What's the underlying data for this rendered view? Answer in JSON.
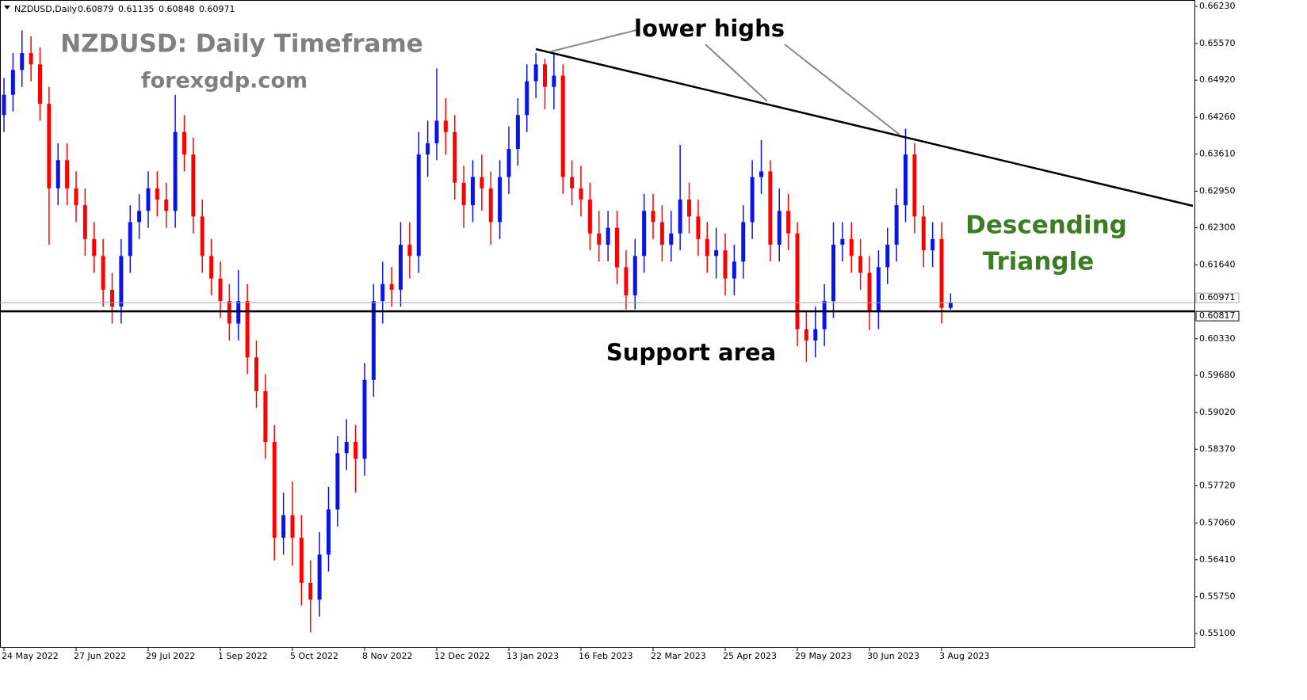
{
  "header": {
    "symbol": "NZDUSD,Daily",
    "ohlc": [
      "0.60879",
      "0.61135",
      "0.60848",
      "0.60971"
    ]
  },
  "chart_data": {
    "type": "candlestick",
    "title": "NZDUSD: Daily Timeframe",
    "subtitle": "forexgdp.com",
    "annotations": {
      "lower_highs": "lower highs",
      "pattern": [
        "Descending",
        "Triangle"
      ],
      "support": "Support area"
    },
    "up_color": "#0a14e6",
    "down_color": "#ff0000",
    "ylim": [
      0.66342,
      0.54847
    ],
    "yticks": [
      {
        "value": 0.6623,
        "label": "0.66230"
      },
      {
        "value": 0.6557,
        "label": "0.65570"
      },
      {
        "value": 0.6492,
        "label": "0.64920"
      },
      {
        "value": 0.6426,
        "label": "0.64260"
      },
      {
        "value": 0.6361,
        "label": "0.63610"
      },
      {
        "value": 0.6295,
        "label": "0.62950"
      },
      {
        "value": 0.623,
        "label": "0.62300"
      },
      {
        "value": 0.6164,
        "label": "0.61640"
      },
      {
        "value": 0.6033,
        "label": "0.60330"
      },
      {
        "value": 0.5968,
        "label": "0.59680"
      },
      {
        "value": 0.5902,
        "label": "0.59020"
      },
      {
        "value": 0.5837,
        "label": "0.58370"
      },
      {
        "value": 0.5772,
        "label": "0.57720"
      },
      {
        "value": 0.5706,
        "label": "0.57060"
      },
      {
        "value": 0.5641,
        "label": "0.56410"
      },
      {
        "value": 0.5575,
        "label": "0.55750"
      },
      {
        "value": 0.551,
        "label": "0.55100"
      }
    ],
    "price_lines": [
      {
        "value": 0.60971,
        "label": "0.60971",
        "color": "#a0a8b0"
      },
      {
        "value": 0.60817,
        "label": "0.60817",
        "color": "#000000"
      }
    ],
    "categories": [
      "24 May 2022",
      null,
      null,
      null,
      null,
      null,
      null,
      null,
      "27 Jun 2022",
      null,
      null,
      null,
      null,
      null,
      null,
      null,
      "29 Jul 2022",
      null,
      null,
      null,
      null,
      null,
      null,
      null,
      "1 Sep 2022",
      null,
      null,
      null,
      null,
      null,
      null,
      null,
      "5 Oct 2022",
      null,
      null,
      null,
      null,
      null,
      null,
      null,
      "8 Nov 2022",
      null,
      null,
      null,
      null,
      null,
      null,
      null,
      "12 Dec 2022",
      null,
      null,
      null,
      null,
      null,
      null,
      null,
      "13 Jan 2023",
      null,
      null,
      null,
      null,
      null,
      null,
      null,
      "16 Feb 2023",
      null,
      null,
      null,
      null,
      null,
      null,
      null,
      "22 Mar 2023",
      null,
      null,
      null,
      null,
      null,
      null,
      null,
      "25 Apr 2023",
      null,
      null,
      null,
      null,
      null,
      null,
      null,
      "29 May 2023",
      null,
      null,
      null,
      null,
      null,
      null,
      null,
      "30 Jun 2023",
      null,
      null,
      null,
      null,
      null,
      null,
      null,
      "3 Aug 2023",
      null
    ],
    "open": [
      0.643,
      0.6466,
      0.651,
      0.654,
      0.652,
      0.645,
      0.63,
      0.635,
      0.63,
      0.627,
      0.621,
      0.618,
      0.612,
      0.609,
      0.618,
      0.624,
      0.626,
      0.63,
      0.628,
      0.626,
      0.64,
      0.636,
      0.625,
      0.618,
      0.614,
      0.61,
      0.606,
      0.61,
      0.6,
      0.594,
      0.585,
      0.568,
      0.572,
      0.568,
      0.56,
      0.557,
      0.565,
      0.573,
      0.583,
      0.585,
      0.582,
      0.596,
      0.61,
      0.613,
      0.612,
      0.62,
      0.618,
      0.636,
      0.638,
      0.642,
      0.64,
      0.631,
      0.627,
      0.632,
      0.63,
      0.624,
      0.632,
      0.637,
      0.643,
      0.649,
      0.652,
      0.648,
      0.65,
      0.632,
      0.63,
      0.628,
      0.622,
      0.62,
      0.623,
      0.616,
      0.611,
      0.618,
      0.626,
      0.624,
      0.62,
      0.622,
      0.628,
      0.625,
      0.621,
      0.618,
      0.619,
      0.614,
      0.617,
      0.624,
      0.632,
      0.633,
      0.62,
      0.626,
      0.622,
      0.605,
      0.603,
      0.605,
      0.61,
      0.62,
      0.621,
      0.618,
      0.615,
      0.608,
      0.616,
      0.62,
      0.627,
      0.636,
      0.625,
      0.619,
      0.621,
      0.60879
    ],
    "high": [
      0.6496,
      0.654,
      0.658,
      0.657,
      0.655,
      0.648,
      0.638,
      0.638,
      0.633,
      0.63,
      0.624,
      0.621,
      0.615,
      0.621,
      0.627,
      0.629,
      0.633,
      0.633,
      0.631,
      0.6466,
      0.643,
      0.639,
      0.628,
      0.621,
      0.617,
      0.613,
      0.6155,
      0.613,
      0.603,
      0.597,
      0.588,
      0.576,
      0.578,
      0.572,
      0.564,
      0.569,
      0.577,
      0.586,
      0.589,
      0.588,
      0.599,
      0.613,
      0.617,
      0.616,
      0.624,
      0.624,
      0.64,
      0.642,
      0.6513,
      0.646,
      0.643,
      0.634,
      0.635,
      0.636,
      0.633,
      0.635,
      0.641,
      0.646,
      0.652,
      0.654,
      0.653,
      0.6538,
      0.652,
      0.635,
      0.634,
      0.631,
      0.626,
      0.626,
      0.626,
      0.619,
      0.621,
      0.629,
      0.629,
      0.627,
      0.626,
      0.6377,
      0.631,
      0.628,
      0.624,
      0.623,
      0.622,
      0.62,
      0.627,
      0.635,
      0.6386,
      0.635,
      0.63,
      0.629,
      0.624,
      0.608,
      0.609,
      0.613,
      0.624,
      0.624,
      0.624,
      0.621,
      0.618,
      0.619,
      0.623,
      0.63,
      0.6406,
      0.638,
      0.627,
      0.624,
      0.624,
      0.61135
    ],
    "low": [
      0.64,
      0.6436,
      0.648,
      0.649,
      0.642,
      0.62,
      0.627,
      0.627,
      0.624,
      0.618,
      0.615,
      0.609,
      0.606,
      0.606,
      0.615,
      0.621,
      0.623,
      0.625,
      0.623,
      0.623,
      0.633,
      0.622,
      0.615,
      0.611,
      0.607,
      0.603,
      0.603,
      0.597,
      0.591,
      0.582,
      0.564,
      0.565,
      0.563,
      0.556,
      0.5512,
      0.554,
      0.562,
      0.57,
      0.58,
      0.576,
      0.579,
      0.593,
      0.606,
      0.609,
      0.609,
      0.614,
      0.615,
      0.632,
      0.635,
      0.636,
      0.628,
      0.623,
      0.624,
      0.626,
      0.62,
      0.621,
      0.629,
      0.634,
      0.64,
      0.646,
      0.644,
      0.644,
      0.629,
      0.627,
      0.625,
      0.619,
      0.617,
      0.617,
      0.613,
      0.6085,
      0.6085,
      0.615,
      0.621,
      0.617,
      0.617,
      0.619,
      0.622,
      0.618,
      0.615,
      0.614,
      0.611,
      0.611,
      0.614,
      0.621,
      0.629,
      0.617,
      0.617,
      0.619,
      0.602,
      0.5992,
      0.6,
      0.602,
      0.607,
      0.617,
      0.615,
      0.612,
      0.6048,
      0.605,
      0.613,
      0.617,
      0.624,
      0.622,
      0.616,
      0.616,
      0.606,
      0.60848
    ],
    "close": [
      0.6466,
      0.651,
      0.654,
      0.652,
      0.645,
      0.63,
      0.635,
      0.63,
      0.627,
      0.621,
      0.618,
      0.612,
      0.609,
      0.618,
      0.624,
      0.626,
      0.63,
      0.628,
      0.626,
      0.64,
      0.636,
      0.625,
      0.618,
      0.614,
      0.61,
      0.606,
      0.61,
      0.6,
      0.594,
      0.585,
      0.568,
      0.572,
      0.568,
      0.56,
      0.557,
      0.565,
      0.573,
      0.583,
      0.585,
      0.582,
      0.596,
      0.61,
      0.613,
      0.612,
      0.62,
      0.618,
      0.636,
      0.638,
      0.642,
      0.64,
      0.631,
      0.627,
      0.632,
      0.63,
      0.624,
      0.632,
      0.637,
      0.643,
      0.649,
      0.652,
      0.648,
      0.65,
      0.632,
      0.63,
      0.628,
      0.622,
      0.62,
      0.623,
      0.616,
      0.611,
      0.618,
      0.626,
      0.624,
      0.62,
      0.622,
      0.628,
      0.625,
      0.621,
      0.618,
      0.619,
      0.614,
      0.617,
      0.624,
      0.632,
      0.633,
      0.62,
      0.626,
      0.622,
      0.605,
      0.603,
      0.605,
      0.61,
      0.62,
      0.621,
      0.618,
      0.615,
      0.608,
      0.616,
      0.62,
      0.627,
      0.636,
      0.625,
      0.619,
      0.621,
      0.60879,
      0.60971
    ]
  }
}
